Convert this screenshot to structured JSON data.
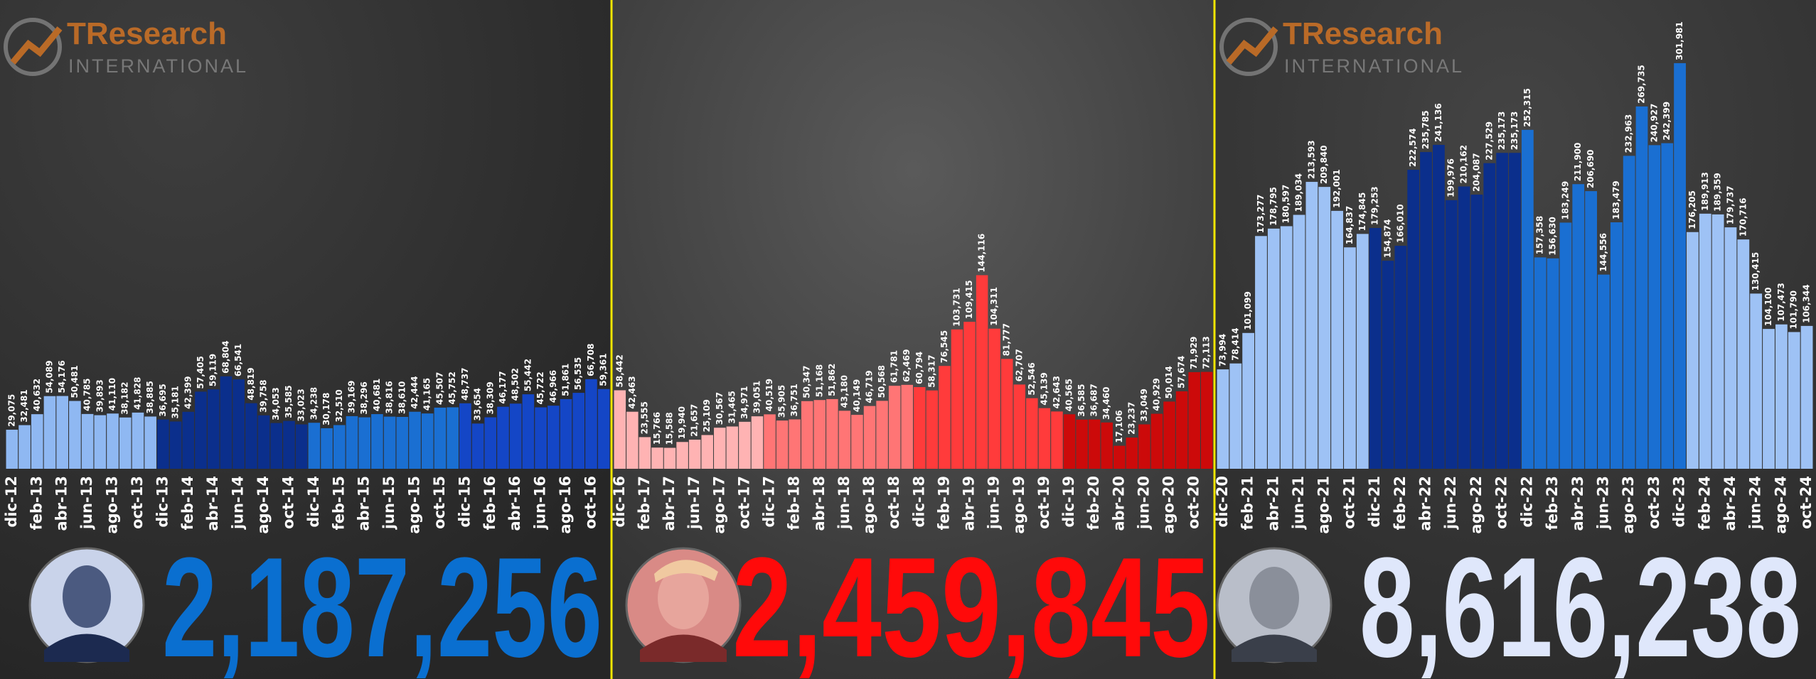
{
  "logo": {
    "name": "TResearch",
    "subtitle": "INTERNATIONAL"
  },
  "chart_data": [
    {
      "type": "bar",
      "categories": [
        "dic-12",
        null,
        "feb-13",
        null,
        "abr-13",
        null,
        "jun-13",
        null,
        "ago-13",
        null,
        "oct-13",
        null,
        "dic-13",
        null,
        "feb-14",
        null,
        "abr-14",
        null,
        "jun-14",
        null,
        "ago-14",
        null,
        "oct-14",
        null,
        "dic-14",
        null,
        "feb-15",
        null,
        "abr-15",
        null,
        "jun-15",
        null,
        "ago-15",
        null,
        "oct-15",
        null,
        "dic-15",
        null,
        "feb-16",
        null,
        "abr-16",
        null,
        "jun-16",
        null,
        "ago-16",
        null,
        "oct-16",
        null
      ],
      "values": [
        29075,
        32481,
        40632,
        54089,
        54176,
        50481,
        40785,
        39893,
        41110,
        38182,
        41828,
        38885,
        36695,
        35181,
        42399,
        57405,
        59119,
        68804,
        66541,
        48819,
        39758,
        34053,
        35585,
        33023,
        34238,
        30178,
        32510,
        39169,
        38296,
        40681,
        38816,
        38610,
        42444,
        41165,
        45507,
        45752,
        48737,
        33654,
        38309,
        46177,
        48502,
        55442,
        45722,
        46966,
        51861,
        56535,
        66708,
        59361
      ],
      "value_labels": [
        "29,075",
        "32,481",
        "40,632",
        "54,089",
        "54,176",
        "50,481",
        "40,785",
        "39,893",
        "41,110",
        "38,182",
        "41,828",
        "38,885",
        "36,695",
        "35,181",
        "42,399",
        "57,405",
        "59,119",
        "68,804",
        "66,541",
        "48,819",
        "39,758",
        "34,053",
        "35,585",
        "33,023",
        "34,238",
        "30,178",
        "32,510",
        "39,169",
        "38,296",
        "40,681",
        "38,816",
        "38,610",
        "42,444",
        "41,165",
        "45,507",
        "45,752",
        "48,737",
        "33,654",
        "38,309",
        "46,177",
        "48,502",
        "55,442",
        "45,722",
        "46,966",
        "51,861",
        "56,535",
        "66,708",
        "59,361"
      ],
      "bar_colors": [
        "#8fb8f2",
        "#8fb8f2",
        "#8fb8f2",
        "#8fb8f2",
        "#8fb8f2",
        "#8fb8f2",
        "#8fb8f2",
        "#8fb8f2",
        "#8fb8f2",
        "#8fb8f2",
        "#8fb8f2",
        "#8fb8f2",
        "#0b2f8c",
        "#0b2f8c",
        "#0b2f8c",
        "#0b2f8c",
        "#0b2f8c",
        "#0b2f8c",
        "#0b2f8c",
        "#0b2f8c",
        "#0b2f8c",
        "#0b2f8c",
        "#0b2f8c",
        "#0b2f8c",
        "#1a6fd2",
        "#1a6fd2",
        "#1a6fd2",
        "#1a6fd2",
        "#1a6fd2",
        "#1a6fd2",
        "#1a6fd2",
        "#1a6fd2",
        "#1a6fd2",
        "#1a6fd2",
        "#1a6fd2",
        "#1a6fd2",
        "#1446c6",
        "#1446c6",
        "#1446c6",
        "#1446c6",
        "#1446c6",
        "#1446c6",
        "#1446c6",
        "#1446c6",
        "#1446c6",
        "#1446c6",
        "#1446c6",
        "#1446c6"
      ],
      "ylim": [
        0,
        340000
      ],
      "total": {
        "value": 2187256,
        "label": "2,187,256"
      },
      "total_color": "#0a6fd0"
    },
    {
      "type": "bar",
      "categories": [
        "dic-16",
        null,
        "feb-17",
        null,
        "abr-17",
        null,
        "jun-17",
        null,
        "ago-17",
        null,
        "oct-17",
        null,
        "dic-17",
        null,
        "feb-18",
        null,
        "abr-18",
        null,
        "jun-18",
        null,
        "ago-18",
        null,
        "oct-18",
        null,
        "dic-18",
        null,
        "feb-19",
        null,
        "abr-19",
        null,
        "jun-19",
        null,
        "ago-19",
        null,
        "oct-19",
        null,
        "dic-19",
        null,
        "feb-20",
        null,
        "abr-20",
        null,
        "jun-20",
        null,
        "ago-20",
        null,
        "oct-20",
        null
      ],
      "values": [
        58442,
        42463,
        23555,
        15766,
        15588,
        19940,
        21657,
        25109,
        30567,
        31465,
        34971,
        39051,
        40519,
        35905,
        36751,
        50347,
        51168,
        51862,
        43180,
        40149,
        46719,
        50568,
        61781,
        62469,
        60794,
        58317,
        76545,
        103731,
        109415,
        144116,
        104311,
        81777,
        62707,
        52546,
        45139,
        42643,
        40565,
        36585,
        36687,
        34460,
        17106,
        23237,
        33049,
        40929,
        50014,
        57674,
        71929,
        72113
      ],
      "value_labels": [
        "58,442",
        "42,463",
        "23,555",
        "15,766",
        "15,588",
        "19,940",
        "21,657",
        "25,109",
        "30,567",
        "31,465",
        "34,971",
        "39,051",
        "40,519",
        "35,905",
        "36,751",
        "50,347",
        "51,168",
        "51,862",
        "43,180",
        "40,149",
        "46,719",
        "50,568",
        "61,781",
        "62,469",
        "60,794",
        "58,317",
        "76,545",
        "103,731",
        "109,415",
        "144,116",
        "104,311",
        "81,777",
        "62,707",
        "52,546",
        "45,139",
        "42,643",
        "40,565",
        "36,585",
        "36,687",
        "34,460",
        "17,106",
        "23,237",
        "33,049",
        "40,929",
        "50,014",
        "57,674",
        "71,929",
        "72,113"
      ],
      "bar_colors": [
        "#ffb3b3",
        "#ffb3b3",
        "#ffb3b3",
        "#ffb3b3",
        "#ffb3b3",
        "#ffb3b3",
        "#ffb3b3",
        "#ffb3b3",
        "#ffb3b3",
        "#ffb3b3",
        "#ffb3b3",
        "#ffb3b3",
        "#ff7575",
        "#ff7575",
        "#ff7575",
        "#ff7575",
        "#ff7575",
        "#ff7575",
        "#ff7575",
        "#ff7575",
        "#ff7575",
        "#ff7575",
        "#ff7575",
        "#ff7575",
        "#ff3b3b",
        "#ff3b3b",
        "#ff3b3b",
        "#ff3b3b",
        "#ff3b3b",
        "#ff3b3b",
        "#ff3b3b",
        "#ff3b3b",
        "#ff3b3b",
        "#ff3b3b",
        "#ff3b3b",
        "#ff3b3b",
        "#cc0a0a",
        "#cc0a0a",
        "#cc0a0a",
        "#cc0a0a",
        "#cc0a0a",
        "#cc0a0a",
        "#cc0a0a",
        "#cc0a0a",
        "#cc0a0a",
        "#cc0a0a",
        "#cc0a0a",
        "#cc0a0a"
      ],
      "ylim": [
        0,
        340000
      ],
      "total": {
        "value": 2459845,
        "label": "2,459,845"
      },
      "total_color": "#ff0a0a"
    },
    {
      "type": "bar",
      "categories": [
        "dic-20",
        null,
        "feb-21",
        null,
        "abr-21",
        null,
        "jun-21",
        null,
        "ago-21",
        null,
        "oct-21",
        null,
        "dic-21",
        null,
        "feb-22",
        null,
        "abr-22",
        null,
        "jun-22",
        null,
        "ago-22",
        null,
        "oct-22",
        null,
        "dic-22",
        null,
        "feb-23",
        null,
        "abr-23",
        null,
        "jun-23",
        null,
        "ago-23",
        null,
        "oct-23",
        null,
        "dic-23",
        null,
        "feb-24",
        null,
        "abr-24",
        null,
        "jun-24",
        null,
        "ago-24",
        null,
        "oct-24"
      ],
      "values": [
        73994,
        78414,
        101099,
        173277,
        178795,
        180597,
        189034,
        213593,
        209840,
        192001,
        164837,
        174845,
        179253,
        154874,
        166010,
        222574,
        235785,
        241136,
        199976,
        210162,
        204087,
        227529,
        235173,
        235173,
        252315,
        157358,
        156630,
        183249,
        211900,
        206690,
        144556,
        183479,
        232963,
        269735,
        240927,
        242399,
        301981,
        176205,
        189913,
        189359,
        179737,
        170716,
        130415,
        104100,
        107473,
        101790,
        106344
      ],
      "value_labels": [
        "73,994",
        "78,414",
        "101,099",
        "173,277",
        "178,795",
        "180,597",
        "189,034",
        "213,593",
        "209,840",
        "192,001",
        "164,837",
        "174,845",
        "179,253",
        "154,874",
        "166,010",
        "222,574",
        "235,785",
        "241,136",
        "199,976",
        "210,162",
        "204,087",
        "227,529",
        "235,173",
        "235,173",
        "252,315",
        "157,358",
        "156,630",
        "183,249",
        "211,900",
        "206,690",
        "144,556",
        "183,479",
        "232,963",
        "269,735",
        "240,927",
        "242,399",
        "301,981",
        "176,205",
        "189,913",
        "189,359",
        "179,737",
        "170,716",
        "130,415",
        "104,100",
        "107,473",
        "101,790",
        "106,344"
      ],
      "bar_colors": [
        "#9ec2f5",
        "#9ec2f5",
        "#9ec2f5",
        "#9ec2f5",
        "#9ec2f5",
        "#9ec2f5",
        "#9ec2f5",
        "#9ec2f5",
        "#9ec2f5",
        "#9ec2f5",
        "#9ec2f5",
        "#9ec2f5",
        "#0b2f8c",
        "#0b2f8c",
        "#0b2f8c",
        "#0b2f8c",
        "#0b2f8c",
        "#0b2f8c",
        "#0b2f8c",
        "#0b2f8c",
        "#0b2f8c",
        "#0b2f8c",
        "#0b2f8c",
        "#0b2f8c",
        "#1a6fd2",
        "#1a6fd2",
        "#1a6fd2",
        "#1a6fd2",
        "#1a6fd2",
        "#1a6fd2",
        "#1a6fd2",
        "#1a6fd2",
        "#1a6fd2",
        "#1a6fd2",
        "#1a6fd2",
        "#1a6fd2",
        "#1a6fd2",
        "#9ec2f5",
        "#9ec2f5",
        "#9ec2f5",
        "#9ec2f5",
        "#9ec2f5",
        "#9ec2f5",
        "#9ec2f5",
        "#9ec2f5",
        "#9ec2f5",
        "#9ec2f5"
      ],
      "ylim": [
        0,
        340000
      ],
      "total": {
        "value": 8616238,
        "label": "8,616,238"
      },
      "total_color": "#dfe7fb"
    }
  ]
}
